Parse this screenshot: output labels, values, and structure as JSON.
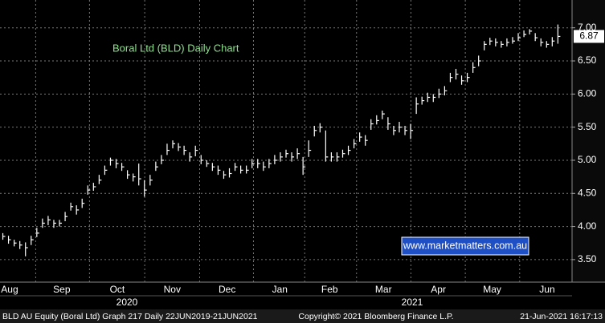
{
  "chart_data": {
    "type": "ohlc",
    "title": "Boral Ltd (BLD) Daily Chart",
    "watermark": "www.marketmatters.com.au",
    "years": [
      "2020",
      "2021"
    ],
    "footer": {
      "left": "BLD AU Equity (Boral Ltd) Graph 217  Daily 22JUN2019-21JUN2021",
      "center": "Copyright© 2021 Bloomberg Finance L.P.",
      "right": "21-Jun-2021 16:17:13"
    },
    "color": "#ffffff",
    "grid": true,
    "ylim": [
      3.16,
      7.42
    ],
    "yticks": [
      {
        "value": 3.5,
        "label": "3.50"
      },
      {
        "value": 4,
        "label": "4.00"
      },
      {
        "value": 4.5,
        "label": "4.50"
      },
      {
        "value": 5,
        "label": "5.00"
      },
      {
        "value": 5.5,
        "label": "5.50"
      },
      {
        "value": 6,
        "label": "6.00"
      },
      {
        "value": 6.5,
        "label": "6.50"
      },
      {
        "value": 7,
        "label": "7.00"
      }
    ],
    "xlim": [
      0,
      101
    ],
    "xticks": [
      {
        "value": 1.7,
        "label": "Aug"
      },
      {
        "value": 10.9,
        "label": "Sep"
      },
      {
        "value": 20.7,
        "label": "Oct"
      },
      {
        "value": 30.4,
        "label": "Nov"
      },
      {
        "value": 40.1,
        "label": "Dec"
      },
      {
        "value": 49.4,
        "label": "Jan"
      },
      {
        "value": 58.2,
        "label": "Feb"
      },
      {
        "value": 67.7,
        "label": "Mar"
      },
      {
        "value": 77.4,
        "label": "Apr"
      },
      {
        "value": 86.9,
        "label": "May"
      },
      {
        "value": 96.6,
        "label": "Jun"
      }
    ],
    "high": [
      3.9,
      3.86,
      3.8,
      3.78,
      3.76,
      3.86,
      3.98,
      4.12,
      4.16,
      4.1,
      4.1,
      4.22,
      4.36,
      4.32,
      4.42,
      4.62,
      4.66,
      4.78,
      4.92,
      5.04,
      5.02,
      4.96,
      4.85,
      4.8,
      4.95,
      4.7,
      4.78,
      4.98,
      5.08,
      5.25,
      5.3,
      5.26,
      5.22,
      5.12,
      5.22,
      5.08,
      5.0,
      4.96,
      4.92,
      4.84,
      4.88,
      4.96,
      4.92,
      4.92,
      5.02,
      5.02,
      4.98,
      5.02,
      5.08,
      5.12,
      5.16,
      5.12,
      5.18,
      5.05,
      5.3,
      5.52,
      5.56,
      5.45,
      5.12,
      5.12,
      5.16,
      5.22,
      5.32,
      5.42,
      5.38,
      5.62,
      5.68,
      5.75,
      5.65,
      5.52,
      5.58,
      5.52,
      5.55,
      5.95,
      5.96,
      6.02,
      6.0,
      6.08,
      6.12,
      6.32,
      6.38,
      6.28,
      6.32,
      6.48,
      6.58,
      6.8,
      6.85,
      6.84,
      6.8,
      6.84,
      6.86,
      6.92,
      6.96,
      6.98,
      6.92,
      6.84,
      6.8,
      6.86,
      7.05
    ],
    "low": [
      3.8,
      3.74,
      3.7,
      3.66,
      3.55,
      3.72,
      3.84,
      3.98,
      4.02,
      3.98,
      4.0,
      4.08,
      4.24,
      4.18,
      4.28,
      4.48,
      4.54,
      4.64,
      4.78,
      4.92,
      4.88,
      4.84,
      4.72,
      4.68,
      4.62,
      4.45,
      4.62,
      4.84,
      4.94,
      5.08,
      5.18,
      5.14,
      5.08,
      4.98,
      5.06,
      4.94,
      4.9,
      4.84,
      4.78,
      4.72,
      4.74,
      4.84,
      4.8,
      4.8,
      4.88,
      4.88,
      4.84,
      4.88,
      4.94,
      4.98,
      5.04,
      4.98,
      5.02,
      4.78,
      5.05,
      5.36,
      5.42,
      4.98,
      4.98,
      4.98,
      5.04,
      5.08,
      5.18,
      5.28,
      5.22,
      5.46,
      5.54,
      5.62,
      5.46,
      5.38,
      5.42,
      5.38,
      5.32,
      5.7,
      5.84,
      5.88,
      5.88,
      5.94,
      5.98,
      6.18,
      6.22,
      6.14,
      6.18,
      6.32,
      6.42,
      6.66,
      6.74,
      6.72,
      6.7,
      6.72,
      6.76,
      6.8,
      6.86,
      6.9,
      6.8,
      6.72,
      6.7,
      6.72,
      6.76
    ],
    "close": [
      3.85,
      3.8,
      3.75,
      3.72,
      3.68,
      3.8,
      3.9,
      4.05,
      4.1,
      4.05,
      4.05,
      4.15,
      4.3,
      4.25,
      4.35,
      4.55,
      4.6,
      4.7,
      4.85,
      5.0,
      4.95,
      4.9,
      4.78,
      4.75,
      4.72,
      4.55,
      4.7,
      4.9,
      5.0,
      5.15,
      5.25,
      5.2,
      5.15,
      5.05,
      5.15,
      5.0,
      4.95,
      4.9,
      4.85,
      4.78,
      4.8,
      4.9,
      4.85,
      4.85,
      4.95,
      4.95,
      4.9,
      4.95,
      5.0,
      5.05,
      5.1,
      5.05,
      5.1,
      4.9,
      5.15,
      5.45,
      5.5,
      5.05,
      5.05,
      5.05,
      5.1,
      5.15,
      5.25,
      5.35,
      5.3,
      5.55,
      5.6,
      5.7,
      5.55,
      5.45,
      5.5,
      5.45,
      5.45,
      5.85,
      5.9,
      5.95,
      5.95,
      6.0,
      6.05,
      6.25,
      6.3,
      6.2,
      6.25,
      6.4,
      6.5,
      6.75,
      6.8,
      6.78,
      6.75,
      6.78,
      6.8,
      6.85,
      6.9,
      6.95,
      6.85,
      6.78,
      6.75,
      6.8,
      6.87
    ]
  }
}
